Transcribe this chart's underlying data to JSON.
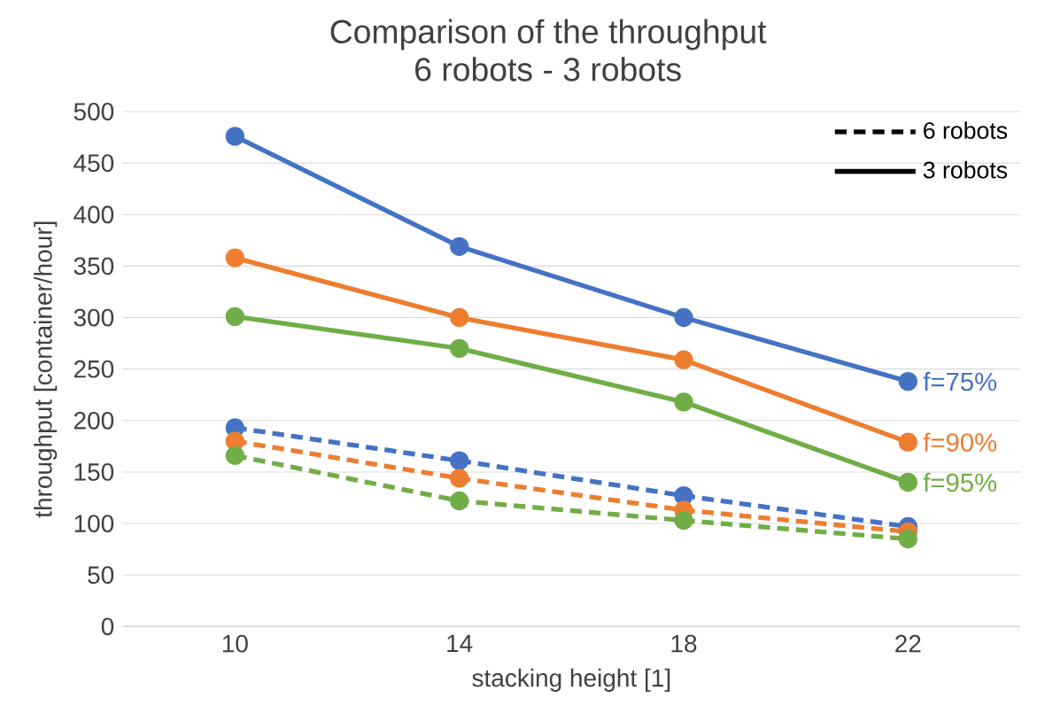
{
  "chart_data": {
    "type": "line",
    "title": "Comparison of the throughput",
    "subtitle": "6 robots - 3 robots",
    "xlabel": "stacking height [1]",
    "ylabel": "throughput [container/hour]",
    "categories": [
      "10",
      "14",
      "18",
      "22"
    ],
    "series": [
      {
        "name": "f=75%",
        "color": "#4472c4",
        "line_style": "solid",
        "values": [
          476,
          369,
          300,
          238
        ]
      },
      {
        "name": "f=90%",
        "color": "#ed7d31",
        "line_style": "solid",
        "values": [
          358,
          300,
          259,
          179
        ]
      },
      {
        "name": "f=95%",
        "color": "#70ad47",
        "line_style": "solid",
        "values": [
          301,
          270,
          218,
          140
        ]
      },
      {
        "color": "#4472c4",
        "line_style": "dashed",
        "values": [
          193,
          161,
          127,
          97
        ]
      },
      {
        "color": "#ed7d31",
        "line_style": "dashed",
        "values": [
          180,
          144,
          113,
          92
        ]
      },
      {
        "color": "#70ad47",
        "line_style": "dashed",
        "values": [
          166,
          122,
          103,
          85
        ]
      }
    ],
    "annotations": [
      "6 robots",
      "3 robots"
    ],
    "ylim": [
      0,
      500
    ],
    "yticks": [
      0,
      50,
      100,
      150,
      200,
      250,
      300,
      350,
      400,
      450,
      500
    ],
    "grid": "y",
    "marker": "circle"
  }
}
